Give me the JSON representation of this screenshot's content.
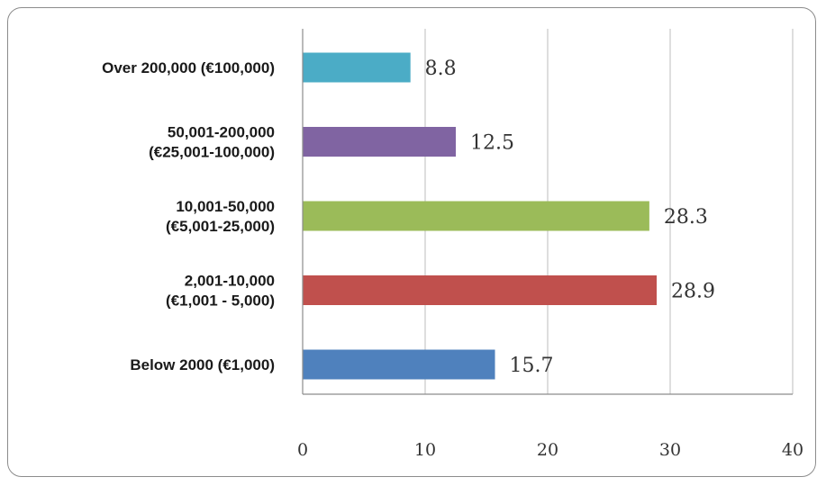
{
  "chart_data": {
    "type": "bar",
    "orientation": "horizontal",
    "categories": [
      [
        "Over 200,000 (€100,000)"
      ],
      [
        "50,001-200,000",
        "(€25,001-100,000)"
      ],
      [
        "10,001-50,000",
        "(€5,001-25,000)"
      ],
      [
        "2,001-10,000",
        "(€1,001 - 5,000)"
      ],
      [
        "Below 2000 (€1,000)"
      ]
    ],
    "values": [
      8.8,
      12.5,
      28.3,
      28.9,
      15.7
    ],
    "value_labels": [
      "8.8",
      "12.5",
      "28.3",
      "28.9",
      "15.7"
    ],
    "colors": [
      "#4bacc6",
      "#8064a2",
      "#9bbb59",
      "#c0504d",
      "#4f81bd"
    ],
    "xlim": [
      0,
      40
    ],
    "xticks": [
      0,
      10,
      20,
      30,
      40
    ],
    "xtick_labels": [
      "0",
      "10",
      "20",
      "30",
      "40"
    ],
    "grid": "vertical",
    "title": "",
    "xlabel": "",
    "ylabel": ""
  }
}
